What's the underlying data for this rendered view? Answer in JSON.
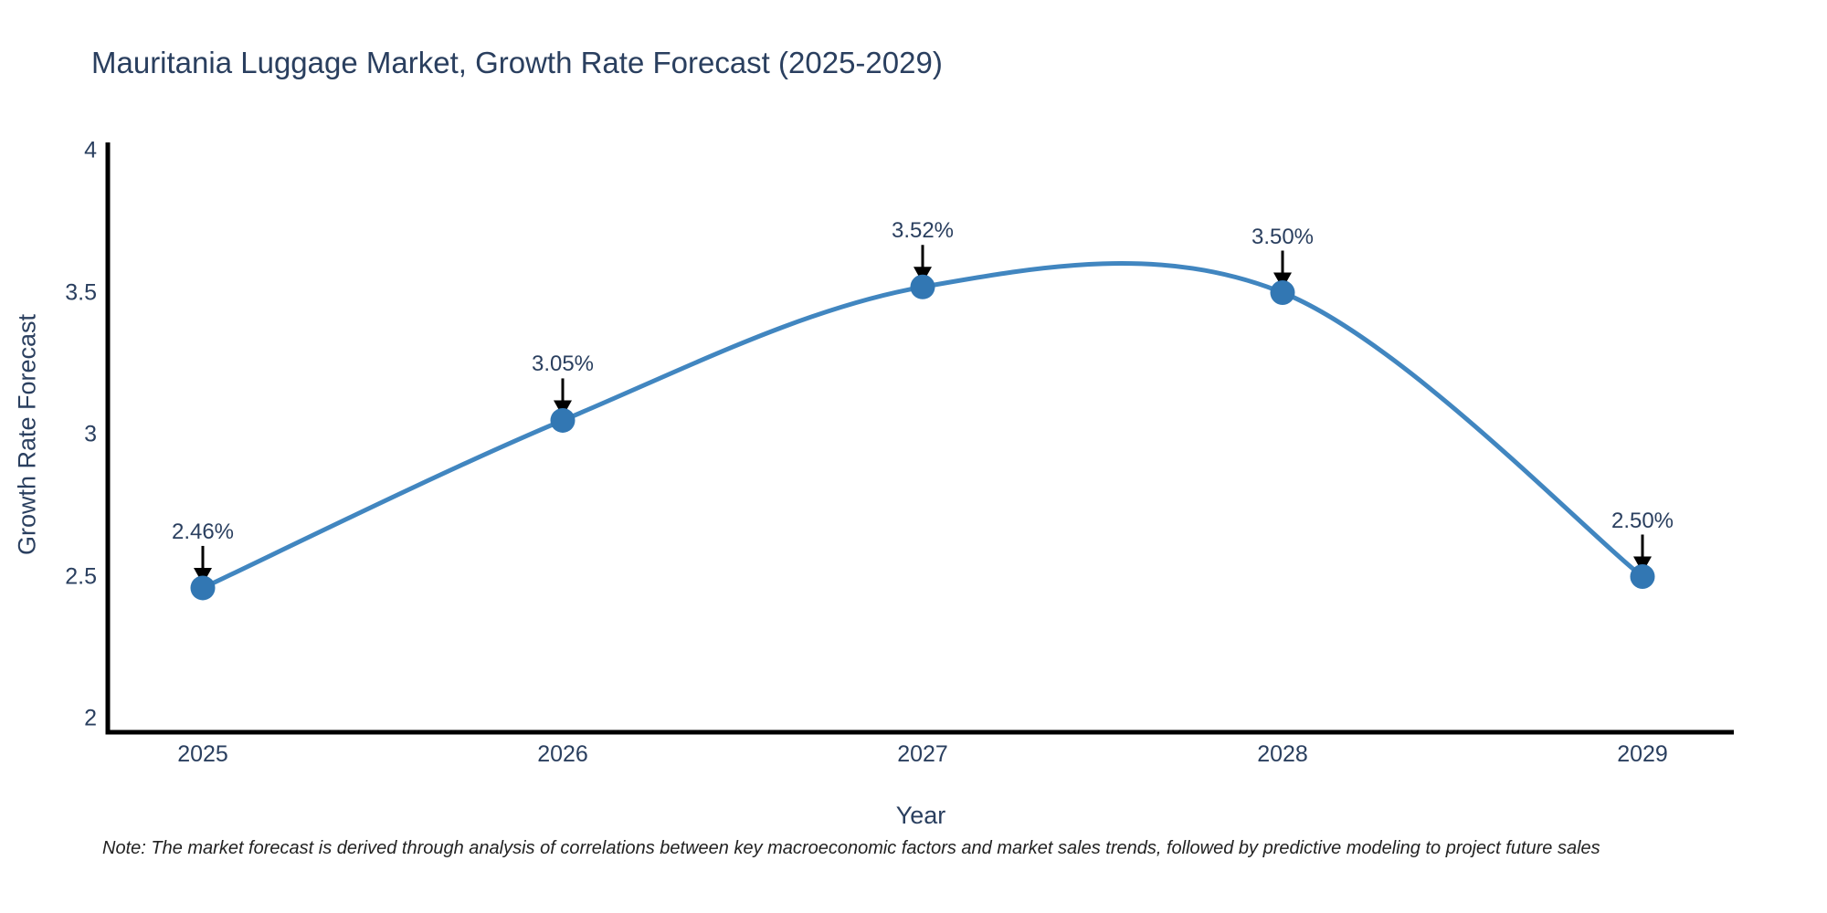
{
  "page": {
    "background": "#ffffff"
  },
  "chart_data": {
    "type": "line",
    "title": "Mauritania Luggage Market, Growth Rate Forecast (2025-2029)",
    "xlabel": "Year",
    "ylabel": "Growth Rate Forecast",
    "categories": [
      "2025",
      "2026",
      "2027",
      "2028",
      "2029"
    ],
    "series": [
      {
        "name": "Growth Rate Forecast",
        "values": [
          2.46,
          3.05,
          3.52,
          3.5,
          2.5
        ],
        "point_labels": [
          "2.46%",
          "3.05%",
          "3.52%",
          "3.50%",
          "2.50%"
        ]
      }
    ],
    "line_shape": "spline",
    "markers": true,
    "annotations_have_arrows": true,
    "yticks": [
      2,
      2.5,
      3,
      3.5,
      4
    ],
    "ytick_labels": [
      "2",
      "2.5",
      "3",
      "3.5",
      "4"
    ],
    "ylim": [
      1.95,
      4.02
    ],
    "grid": false,
    "legend": false,
    "colors": {
      "line": "#4186c0",
      "marker": "#3277b3",
      "axis_line": "#000000",
      "tick_text": "#2a3f5f",
      "title_text": "#2a3f5f",
      "annotation_text": "#2a3f5f",
      "annotation_arrow": "#000000"
    }
  },
  "note": "Note: The market forecast is derived through analysis of correlations between key macroeconomic factors and market sales trends, followed by predictive modeling to project future sales"
}
